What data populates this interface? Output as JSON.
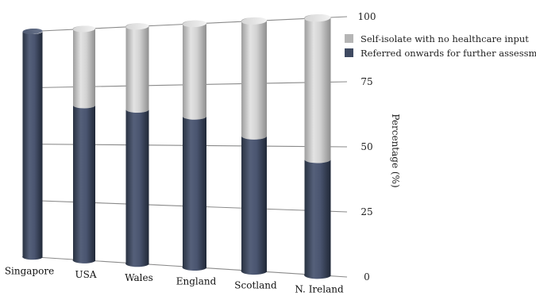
{
  "chart_data": {
    "type": "bar",
    "stacked": true,
    "title": "",
    "xlabel": "",
    "ylabel": "Percentage (%)",
    "ylim": [
      0,
      100
    ],
    "yticks": [
      "0",
      "25",
      "50",
      "75",
      "100"
    ],
    "grid": true,
    "legend_position": "top-right",
    "categories": [
      "Singapore",
      "USA",
      "Wales",
      "England",
      "Scotland",
      "N. Ireland"
    ],
    "series": [
      {
        "name": "Referred onwards for further assessment",
        "color": "#3f4a61",
        "values": [
          100,
          67,
          65,
          62,
          54,
          45
        ]
      },
      {
        "name": "Self-isolate with no healthcare input",
        "color": "#bdbdbd",
        "values": [
          0,
          33,
          35,
          38,
          46,
          55
        ]
      }
    ]
  }
}
